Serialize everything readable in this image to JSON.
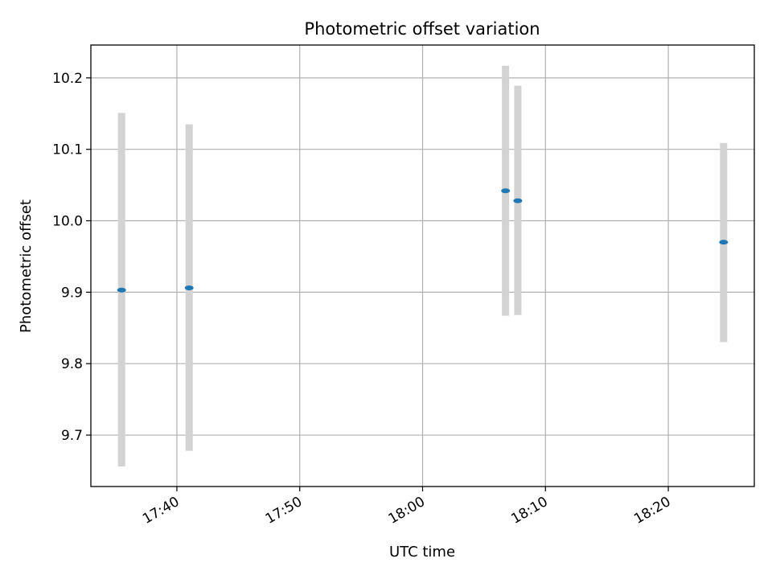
{
  "chart_data": {
    "type": "scatter",
    "title": "Photometric offset variation",
    "xlabel": "UTC time",
    "ylabel": "Photometric offset",
    "grid": true,
    "x_ticks": [
      "17:40",
      "17:50",
      "18:00",
      "18:10",
      "18:20"
    ],
    "y_ticks": [
      "9.7",
      "9.8",
      "9.9",
      "10.0",
      "10.1",
      "10.2"
    ],
    "x_tick_minutes": [
      1060,
      1070,
      1080,
      1090,
      1100
    ],
    "y_tick_values": [
      9.7,
      9.8,
      9.9,
      10.0,
      10.1,
      10.2
    ],
    "xlim_minutes": [
      1053.0,
      1107.0
    ],
    "ylim": [
      9.628,
      10.246
    ],
    "series": [
      {
        "points": [
          {
            "time": "17:35:30",
            "minutes": 1055.5,
            "y": 9.903,
            "err_low": 9.656,
            "err_high": 10.151
          },
          {
            "time": "17:41:00",
            "minutes": 1061.0,
            "y": 9.906,
            "err_low": 9.678,
            "err_high": 10.135
          },
          {
            "time": "18:06:45",
            "minutes": 1086.75,
            "y": 10.042,
            "err_low": 9.867,
            "err_high": 10.217
          },
          {
            "time": "18:07:45",
            "minutes": 1087.75,
            "y": 10.028,
            "err_low": 9.868,
            "err_high": 10.189
          },
          {
            "time": "18:24:30",
            "minutes": 1104.5,
            "y": 9.97,
            "err_low": 9.83,
            "err_high": 10.109
          }
        ]
      }
    ],
    "colors": {
      "marker": "#1f77b4",
      "errorbar": "#d3d3d3",
      "grid": "#b0b0b0",
      "axes": "#000000"
    }
  }
}
